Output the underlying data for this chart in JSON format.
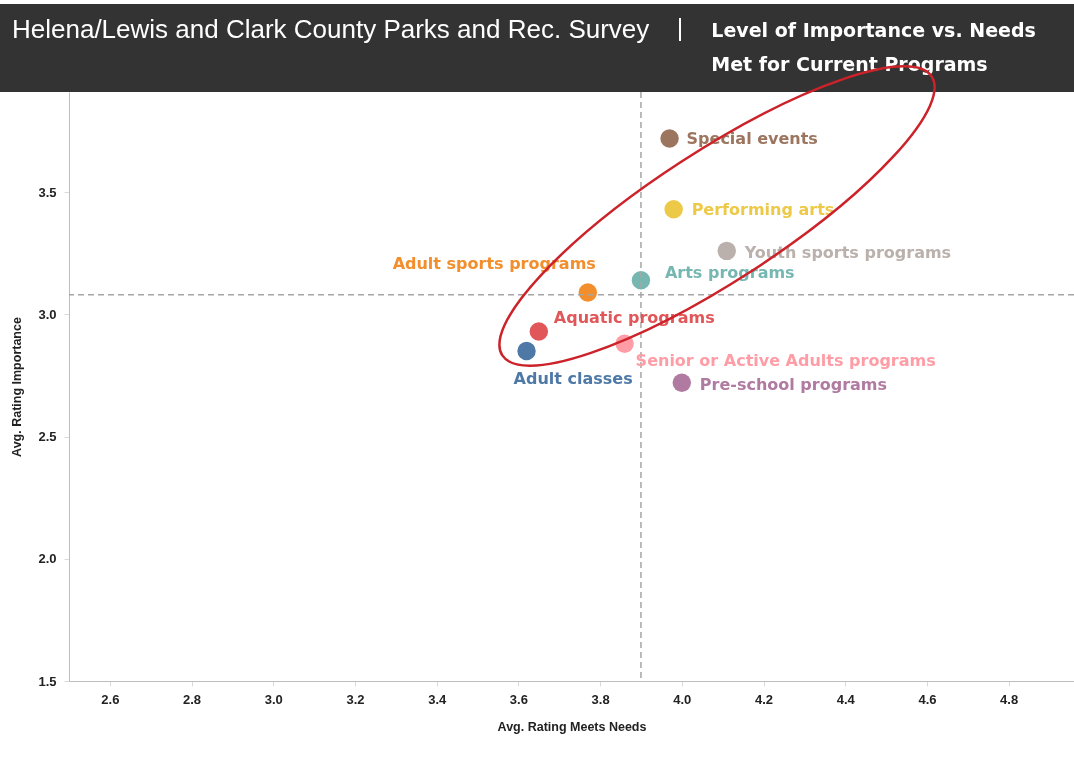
{
  "chart_data": {
    "type": "scatter",
    "title": "Helena/Lewis and Clark County Parks and Rec. Survey",
    "subtitle": "Level of Importance vs. Needs Met for Current Programs",
    "xlabel": "Avg. Rating Meets Needs",
    "ylabel": "Avg. Rating Importance",
    "series": [
      {
        "name": "Special events",
        "color": "#9c755f",
        "x": [
          3.97
        ],
        "values": [
          3.72
        ]
      },
      {
        "name": "Performing arts",
        "color": "#edc948",
        "x": [
          3.98
        ],
        "values": [
          3.43
        ]
      },
      {
        "name": "Youth sports programs",
        "color": "#bab0ac",
        "x": [
          4.11
        ],
        "values": [
          3.26
        ]
      },
      {
        "name": "Arts programs",
        "color": "#76b7b2",
        "x": [
          3.9
        ],
        "values": [
          3.14
        ]
      },
      {
        "name": "Adult sports programs",
        "color": "#f28e2b",
        "x": [
          3.77
        ],
        "values": [
          3.09
        ]
      },
      {
        "name": "Aquatic programs",
        "color": "#e15759",
        "x": [
          3.65
        ],
        "values": [
          2.93
        ]
      },
      {
        "name": "Adult classes",
        "color": "#4e79a7",
        "x": [
          3.62
        ],
        "values": [
          2.85
        ]
      },
      {
        "name": "Senior or Active Adults programs",
        "color": "#ff9da7",
        "x": [
          3.86
        ],
        "values": [
          2.88
        ]
      },
      {
        "name": "Pre-school programs",
        "color": "#b07aa1",
        "x": [
          4.0
        ],
        "values": [
          2.72
        ]
      }
    ],
    "xlim": [
      2.5,
      4.96
    ],
    "xticks": [
      2.6,
      2.8,
      {
        "value": 3,
        "label": "3.0"
      },
      3.2,
      3.4,
      3.6,
      3.8,
      {
        "value": 4,
        "label": "4.0"
      },
      4.2,
      4.4,
      4.6,
      4.8
    ],
    "ylim": [
      1.5,
      3.91
    ],
    "yticks": [
      1.5,
      {
        "value": 2,
        "label": "2.0"
      },
      2.5,
      {
        "value": 3,
        "label": "3.0"
      },
      3.5
    ],
    "ref_lines": [
      {
        "axis": "x",
        "value": 3.9,
        "color": "#a6a6a6",
        "line_style": "dashed"
      },
      {
        "axis": "y",
        "value": 3.08,
        "color": "#a6a6a6",
        "line_style": "dashed"
      }
    ],
    "grid": false,
    "marker": "circle"
  }
}
